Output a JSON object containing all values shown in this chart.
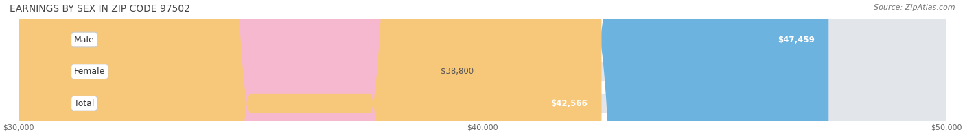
{
  "title": "EARNINGS BY SEX IN ZIP CODE 97502",
  "source": "Source: ZipAtlas.com",
  "categories": [
    "Male",
    "Female",
    "Total"
  ],
  "values": [
    47459,
    38800,
    42566
  ],
  "bar_colors": [
    "#6db3e0",
    "#f5b8ce",
    "#f8c87a"
  ],
  "bar_bg_color": "#e2e6ea",
  "xmin": 30000,
  "xmax": 50000,
  "xticks": [
    30000,
    40000,
    50000
  ],
  "xtick_labels": [
    "$30,000",
    "$40,000",
    "$50,000"
  ],
  "value_labels": [
    "$47,459",
    "$38,800",
    "$42,566"
  ],
  "value_inside": [
    true,
    false,
    true
  ],
  "figsize": [
    14.06,
    1.96
  ],
  "dpi": 100,
  "title_fontsize": 10,
  "bar_label_fontsize": 9,
  "value_fontsize": 8.5,
  "axis_fontsize": 8,
  "source_fontsize": 8
}
